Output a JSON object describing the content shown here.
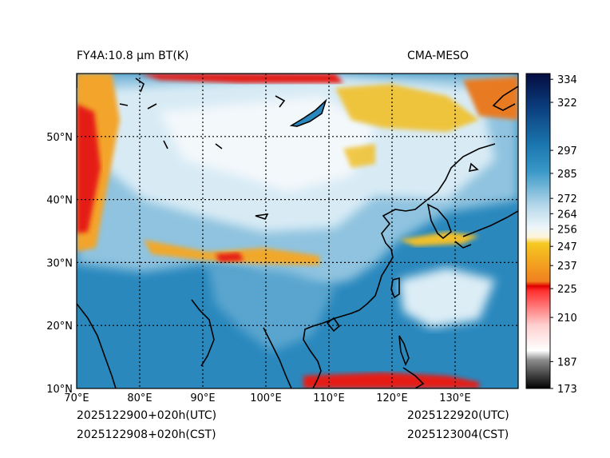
{
  "header": {
    "product": "FY4A:10.8 μm BT(K)",
    "model": "CMA-MESO"
  },
  "map": {
    "lon_range": [
      70,
      140
    ],
    "lat_range": [
      10,
      60
    ],
    "lon_ticks": [
      {
        "value": 70,
        "label": "70°E"
      },
      {
        "value": 80,
        "label": "80°E"
      },
      {
        "value": 90,
        "label": "90°E"
      },
      {
        "value": 100,
        "label": "100°E"
      },
      {
        "value": 110,
        "label": "110°E"
      },
      {
        "value": 120,
        "label": "120°E"
      },
      {
        "value": 130,
        "label": "130°E"
      }
    ],
    "lat_ticks": [
      {
        "value": 10,
        "label": "10°N"
      },
      {
        "value": 20,
        "label": "20°N"
      },
      {
        "value": 30,
        "label": "30°N"
      },
      {
        "value": 40,
        "label": "40°N"
      },
      {
        "value": 50,
        "label": "50°N"
      }
    ]
  },
  "colorbar": {
    "range": [
      173,
      337
    ],
    "ticks": [
      334,
      322,
      297,
      285,
      272,
      264,
      256,
      247,
      237,
      225,
      210,
      187,
      173
    ]
  },
  "footer": {
    "init_utc": "2025122900+020h(UTC)",
    "init_cst": "2025122908+020h(CST)",
    "valid_utc": "2025122920(UTC)",
    "valid_cst": "2025123004(CST)"
  },
  "colors": {
    "ocean": "#2a88bd",
    "cold_cloud": "#f1c02b",
    "very_cold": "#e81e16",
    "coast": "#000000"
  }
}
